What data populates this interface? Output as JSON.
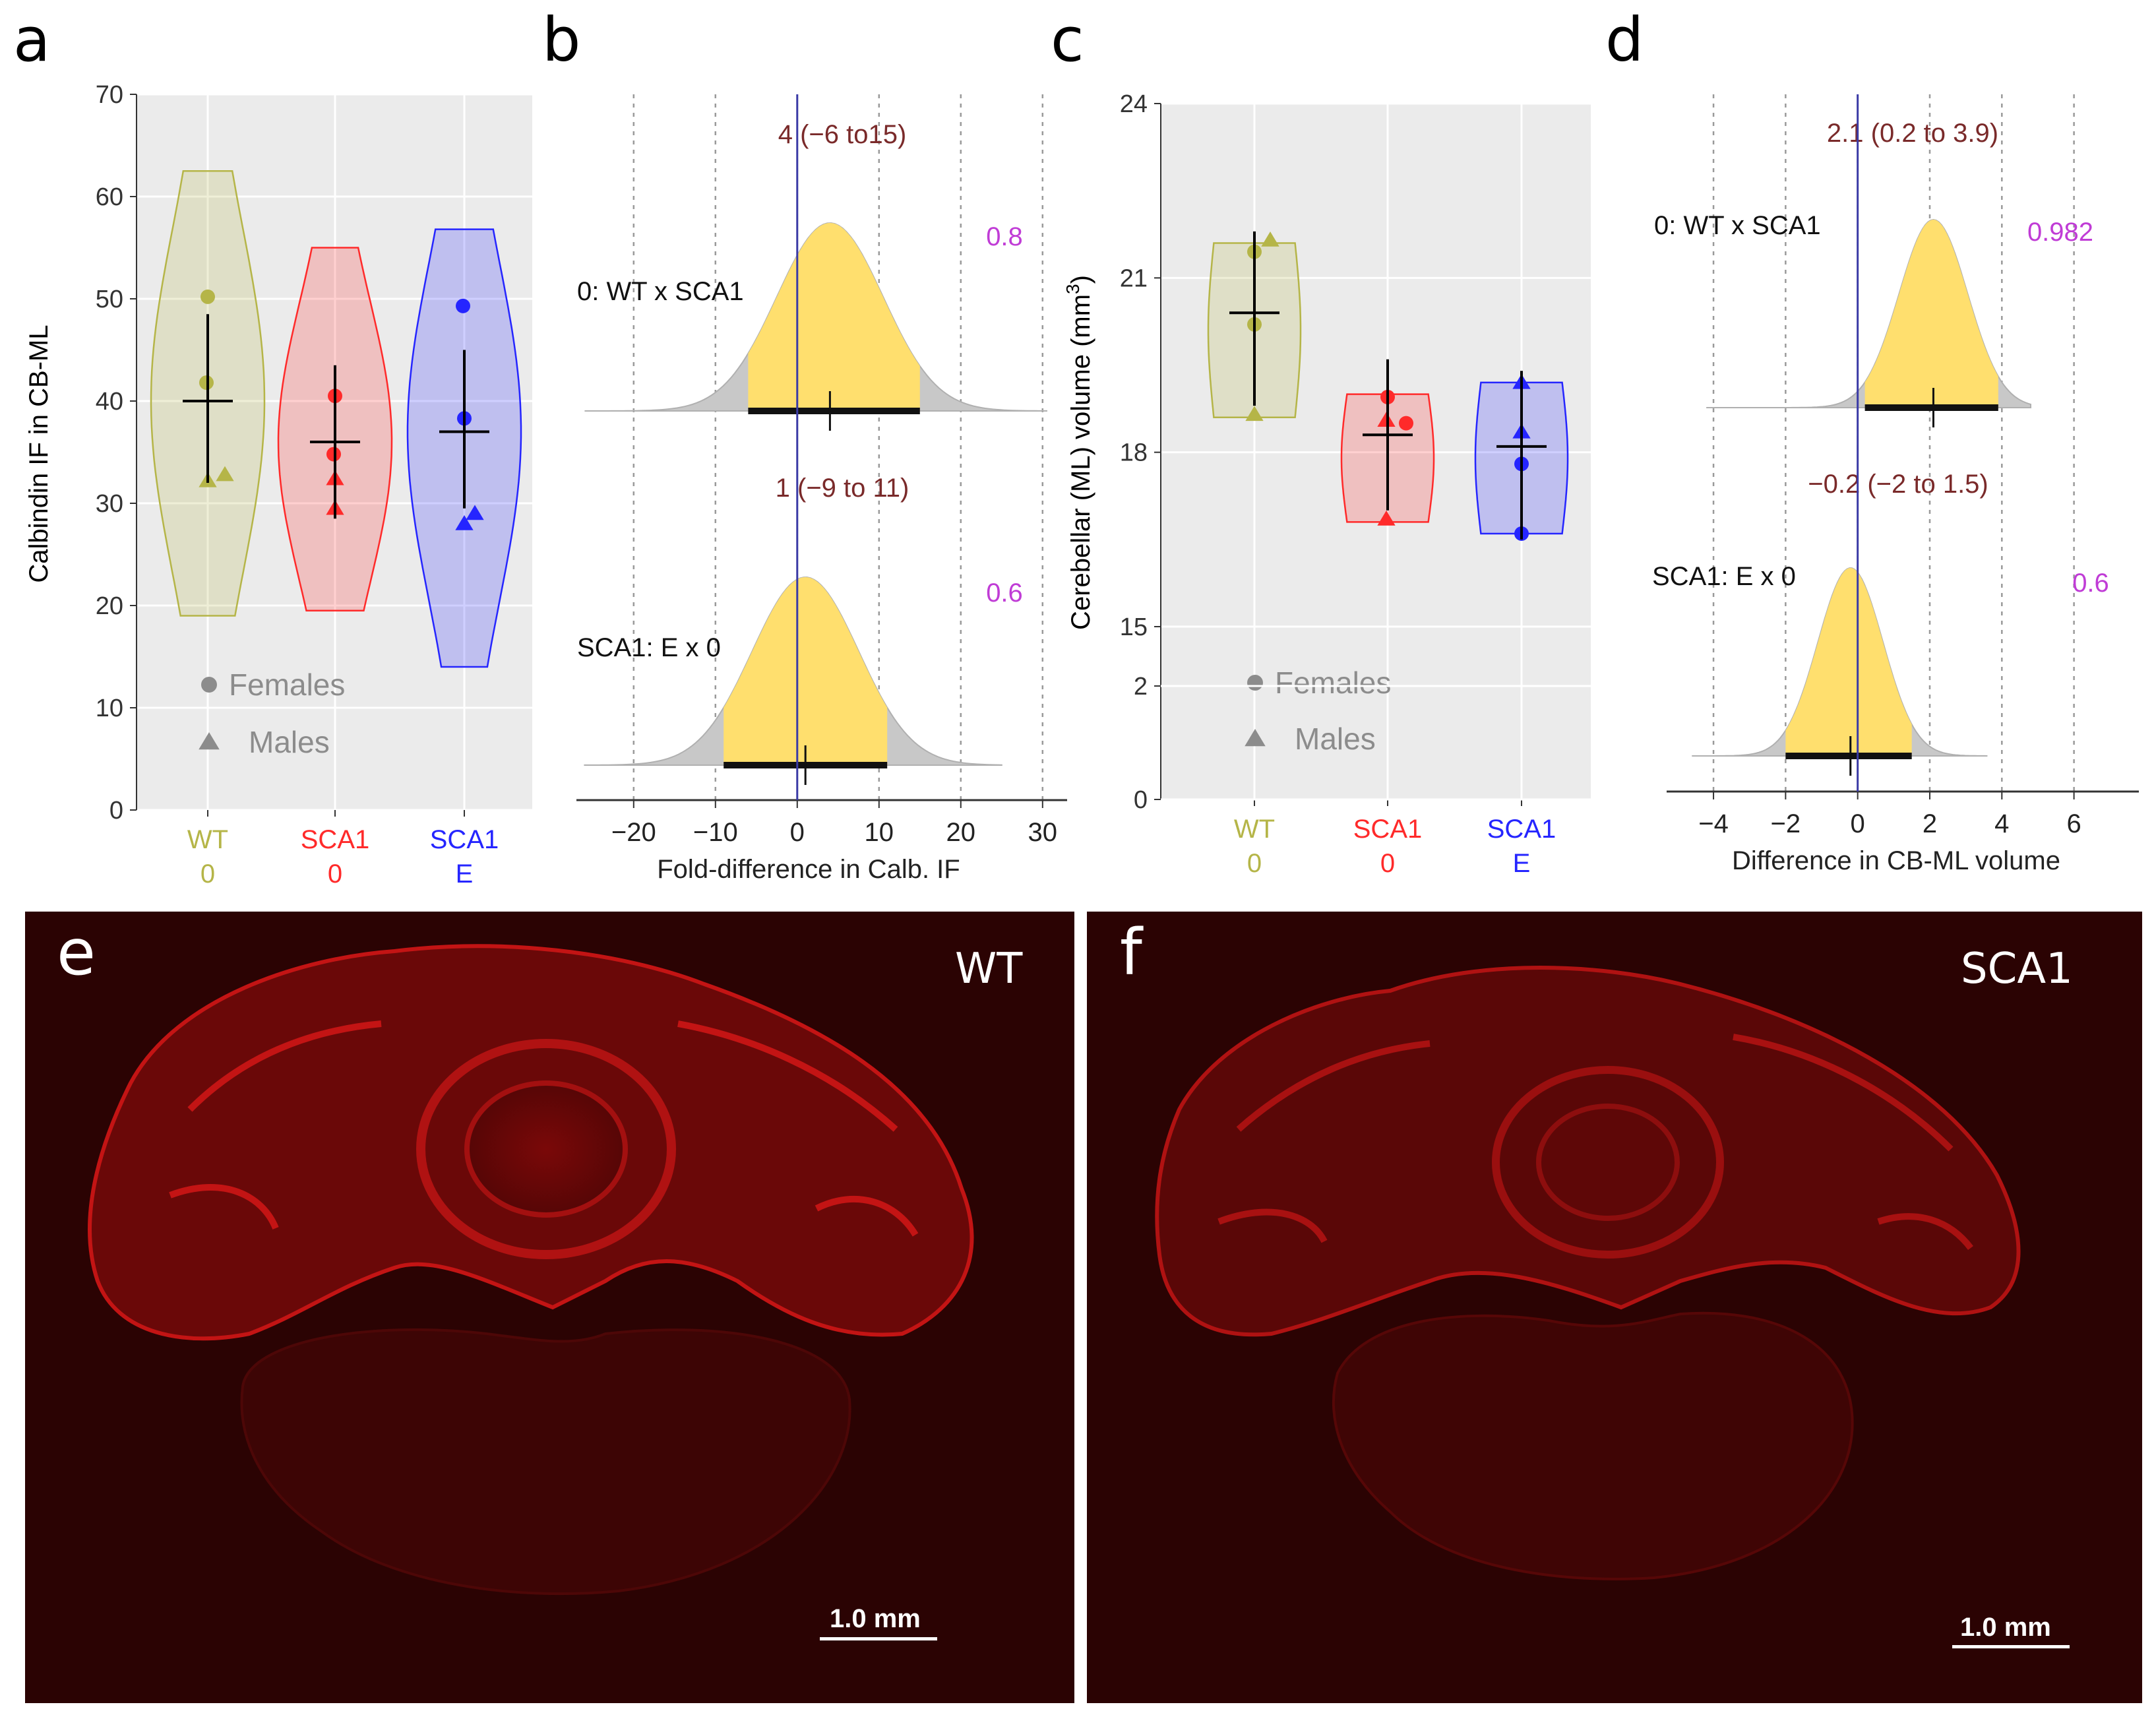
{
  "chart_data": [
    {
      "panel": "a",
      "type": "violin",
      "ylabel": "Calbindin IF in CB-ML",
      "ylim": [
        0,
        70
      ],
      "yticks": [
        "0",
        "10",
        "20",
        "30",
        "40",
        "50",
        "60",
        "70"
      ],
      "groups": [
        {
          "line1": "WT",
          "line2": "0",
          "color": "#b5b548",
          "mean": 40,
          "ci": [
            32,
            48.5
          ],
          "range": [
            19,
            62.5
          ],
          "points": [
            {
              "shape": "circle",
              "y": 50.2
            },
            {
              "shape": "circle",
              "y": 41.8
            },
            {
              "shape": "triangle",
              "y": 32.2
            },
            {
              "shape": "triangle",
              "y": 32.8
            }
          ]
        },
        {
          "line1": "SCA1",
          "line2": "0",
          "color": "#ff2a2a",
          "mean": 36,
          "ci": [
            28.5,
            43.5
          ],
          "range": [
            19.5,
            55
          ],
          "points": [
            {
              "shape": "circle",
              "y": 40.5
            },
            {
              "shape": "circle",
              "y": 34.8
            },
            {
              "shape": "triangle",
              "y": 32.4
            },
            {
              "shape": "triangle",
              "y": 29.5
            }
          ]
        },
        {
          "line1": "SCA1",
          "line2": "E",
          "color": "#2525ff",
          "mean": 37,
          "ci": [
            29.5,
            45
          ],
          "range": [
            14,
            56.8
          ],
          "points": [
            {
              "shape": "circle",
              "y": 49.3
            },
            {
              "shape": "circle",
              "y": 38.3
            },
            {
              "shape": "triangle",
              "y": 28
            },
            {
              "shape": "triangle",
              "y": 29
            }
          ]
        }
      ],
      "legend": [
        {
          "shape": "circle",
          "label": "Females"
        },
        {
          "shape": "triangle",
          "label": "Males"
        }
      ]
    },
    {
      "panel": "b",
      "type": "density",
      "xlabel": "Fold-difference in Calb. IF",
      "xlim": [
        -27,
        33
      ],
      "xticks": [
        "−20",
        "−10",
        "0",
        "10",
        "20",
        "30"
      ],
      "xtick_values": [
        -20,
        -10,
        0,
        10,
        20,
        30
      ],
      "rows": [
        {
          "label": "0: WT x SCA1",
          "ci_text": "4 (−6 to15)",
          "prob": "0.8",
          "mean": 4,
          "sd": 6.5,
          "ci": [
            -6,
            15
          ]
        },
        {
          "label": "SCA1: E x 0",
          "ci_text": "1 (−9 to 11)",
          "prob": "0.6",
          "mean": 1,
          "sd": 6.5,
          "ci": [
            -9,
            11
          ]
        }
      ]
    },
    {
      "panel": "c",
      "type": "violin",
      "ylabel": "Cerebellar (ML) volume (mm",
      "ylabel_sup": "3",
      "ylabel_end": ")",
      "ylim": [
        15,
        24
      ],
      "yticks": [
        "15",
        "18",
        "21",
        "24"
      ],
      "ybreak_ticks": [
        "0",
        "2"
      ],
      "groups": [
        {
          "line1": "WT",
          "line2": "0",
          "color": "#b5b548",
          "mean": 20.4,
          "ci": [
            18.8,
            21.8
          ],
          "range": [
            18.6,
            21.6
          ],
          "points": [
            {
              "shape": "circle",
              "y": 21.45
            },
            {
              "shape": "triangle",
              "y": 21.65
            },
            {
              "shape": "circle",
              "y": 20.2
            },
            {
              "shape": "triangle",
              "y": 18.65
            }
          ]
        },
        {
          "line1": "SCA1",
          "line2": "0",
          "color": "#ff2a2a",
          "mean": 18.3,
          "ci": [
            17,
            19.6
          ],
          "range": [
            16.8,
            19
          ],
          "points": [
            {
              "shape": "circle",
              "y": 18.95
            },
            {
              "shape": "triangle",
              "y": 18.55
            },
            {
              "shape": "circle",
              "y": 18.5
            },
            {
              "shape": "triangle",
              "y": 16.85
            }
          ]
        },
        {
          "line1": "SCA1",
          "line2": "E",
          "color": "#2525ff",
          "mean": 18.1,
          "ci": [
            16.5,
            19.4
          ],
          "range": [
            16.6,
            19.2
          ],
          "points": [
            {
              "shape": "triangle",
              "y": 19.2
            },
            {
              "shape": "triangle",
              "y": 18.35
            },
            {
              "shape": "circle",
              "y": 17.8
            },
            {
              "shape": "circle",
              "y": 16.6
            }
          ]
        }
      ],
      "legend": [
        {
          "shape": "circle",
          "label": "Females"
        },
        {
          "shape": "triangle",
          "label": "Males"
        }
      ]
    },
    {
      "panel": "d",
      "type": "density",
      "xlabel": "Difference in CB-ML volume",
      "xlim": [
        -5.3,
        7.8
      ],
      "xticks": [
        "−4",
        "−2",
        "0",
        "2",
        "4",
        "6"
      ],
      "xtick_values": [
        -4,
        -2,
        0,
        2,
        4,
        6
      ],
      "rows": [
        {
          "label": "0: WT x SCA1",
          "ci_text": "2.1 (0.2 to 3.9)",
          "prob": "0.982",
          "mean": 2.1,
          "sd": 0.95,
          "ci": [
            0.2,
            3.9
          ]
        },
        {
          "label": "SCA1: E x 0",
          "ci_text": "−0.2 (−2 to 1.5)",
          "prob": "0.6",
          "mean": -0.2,
          "sd": 0.9,
          "ci": [
            -2,
            1.5
          ]
        }
      ]
    }
  ],
  "images": [
    {
      "letter": "e",
      "genotype": "WT",
      "scale": "1.0 mm"
    },
    {
      "letter": "f",
      "genotype": "SCA1",
      "scale": "1.0 mm"
    }
  ],
  "colors": {
    "panel_bg": "#ebebeb",
    "density_fill": "#ffdf6e",
    "density_tail": "#c8c8c8",
    "zero_line": "#3a3aa6",
    "ci_text": "#7a2a2a",
    "prob": "#c03cd6",
    "legend_gray": "#8c8c8c",
    "tissue": "#b81010"
  }
}
